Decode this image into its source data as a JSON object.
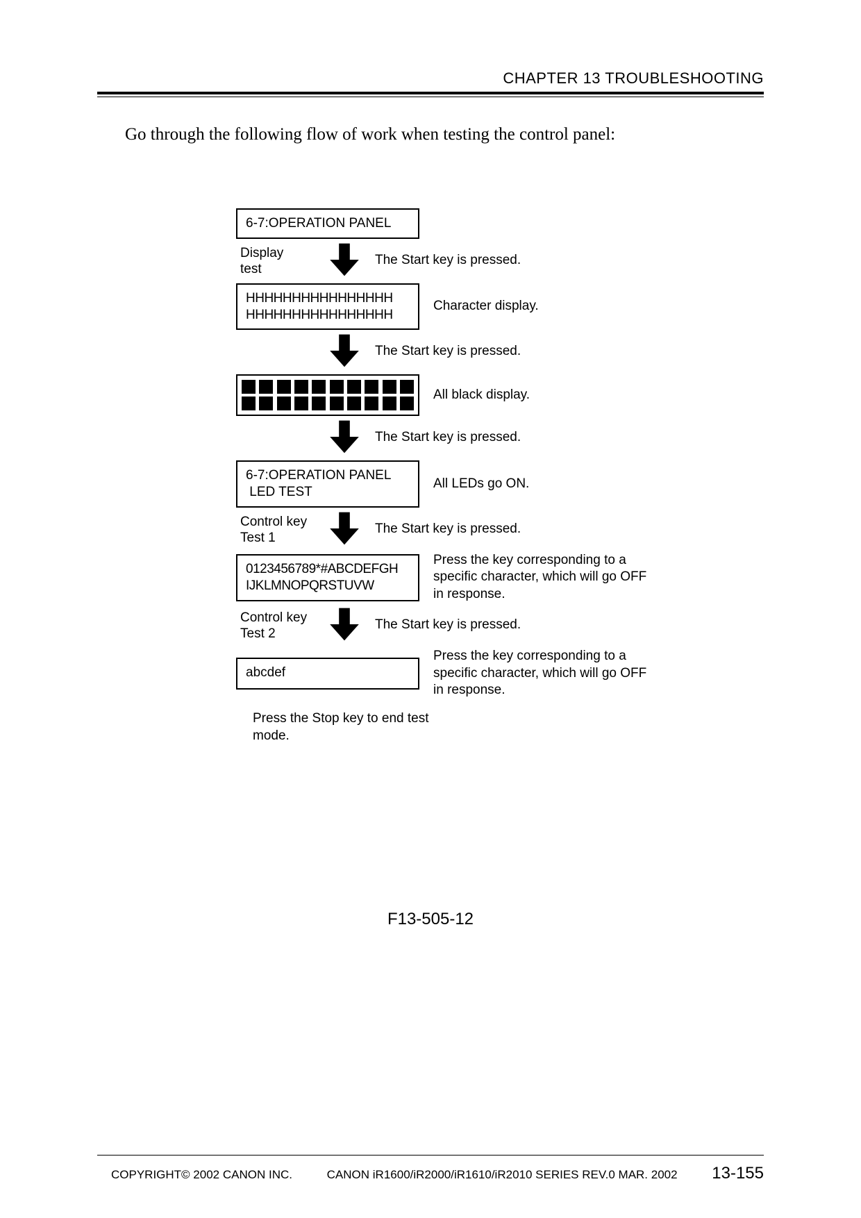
{
  "header": {
    "chapter": "CHAPTER 13 TROUBLESHOOTING"
  },
  "intro": "Go through the following flow of work when testing the control panel:",
  "flow": {
    "box1": "6-7:OPERATION PANEL",
    "arrow1_left": "Display\ntest",
    "arrow1_right": "The Start key is pressed.",
    "box2_line1": "HHHHHHHHHHHHHHHH",
    "box2_line2": "HHHHHHHHHHHHHHHH",
    "desc2": "Character display.",
    "arrow2_right": "The Start key is pressed.",
    "desc3": "All black display.",
    "arrow3_right": "The Start key is pressed.",
    "box4_line1": "6-7:OPERATION PANEL",
    "box4_line2": " LED TEST",
    "desc4": "All LEDs go ON.",
    "arrow4_left": "Control key\nTest 1",
    "arrow4_right": "The Start key is pressed.",
    "box5_line1": "0123456789*#ABCDEFGH",
    "box5_line2": "IJKLMNOPQRSTUVW",
    "desc5": "Press the key corresponding to a specific character, which will go OFF in response.",
    "arrow5_left": "Control key\nTest 2",
    "arrow5_right": "The Start key is pressed.",
    "box6": "abcdef",
    "desc6": "Press the key corresponding to a specific character, which will go OFF in response.",
    "end_note": "Press the Stop key to end test mode.",
    "black_squares_per_row": 10
  },
  "figure_label": "F13-505-12",
  "footer": {
    "copyright": "COPYRIGHT© 2002 CANON INC.",
    "center": "CANON iR1600/iR2000/iR1610/iR2010 SERIES REV.0 MAR. 2002",
    "page": "13-155"
  },
  "style": {
    "arrow_fill": "#000000",
    "box_border": "#000000",
    "page_bg": "#ffffff"
  }
}
